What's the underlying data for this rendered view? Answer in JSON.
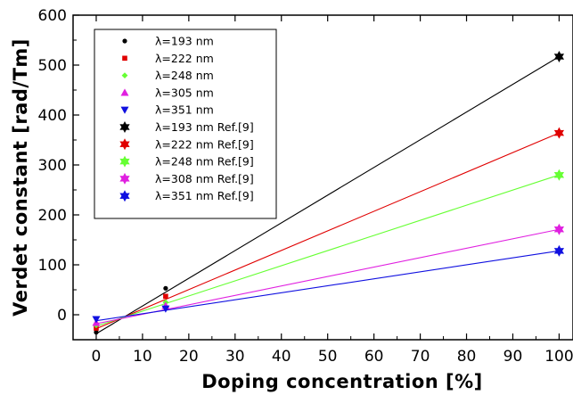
{
  "chart_data": {
    "type": "scatter",
    "title": "",
    "xlabel": "Doping concentration [%]",
    "ylabel": "Verdet constant [rad/Tm]",
    "xlim": [
      -5,
      103
    ],
    "ylim": [
      -50,
      600
    ],
    "xticks": [
      0,
      10,
      20,
      30,
      40,
      50,
      60,
      70,
      80,
      90,
      100
    ],
    "yticks": [
      0,
      100,
      200,
      300,
      400,
      500,
      600
    ],
    "grid": false,
    "legend_position": "top-left",
    "series": [
      {
        "name": "λ=193 nm",
        "marker": "circle",
        "color": "#000000",
        "x": [
          0,
          15
        ],
        "y": [
          -35,
          53
        ]
      },
      {
        "name": "λ=222 nm",
        "marker": "square",
        "color": "#e00000",
        "x": [
          0,
          15
        ],
        "y": [
          -27,
          37
        ]
      },
      {
        "name": "λ=248 nm",
        "marker": "diamond",
        "color": "#66ff33",
        "x": [
          0,
          15
        ],
        "y": [
          -21,
          25
        ]
      },
      {
        "name": "λ=305 nm",
        "marker": "triangle-up",
        "color": "#e020e0",
        "x": [
          0,
          15
        ],
        "y": [
          -16,
          18
        ]
      },
      {
        "name": "λ=351 nm",
        "marker": "triangle-down",
        "color": "#1010e0",
        "x": [
          0,
          15
        ],
        "y": [
          -9,
          12
        ]
      },
      {
        "name": "λ=193 nm Ref.[9]",
        "marker": "star",
        "color": "#000000",
        "x": [
          100
        ],
        "y": [
          517
        ]
      },
      {
        "name": "λ=222 nm Ref.[9]",
        "marker": "star",
        "color": "#e00000",
        "x": [
          100
        ],
        "y": [
          364
        ]
      },
      {
        "name": "λ=248 nm Ref.[9]",
        "marker": "star",
        "color": "#66ff33",
        "x": [
          100
        ],
        "y": [
          280
        ]
      },
      {
        "name": "λ=308 nm Ref.[9]",
        "marker": "star",
        "color": "#e020e0",
        "x": [
          100
        ],
        "y": [
          171
        ]
      },
      {
        "name": "λ=351 nm Ref.[9]",
        "marker": "star",
        "color": "#1010e0",
        "x": [
          100
        ],
        "y": [
          128
        ]
      }
    ],
    "fit_lines": [
      {
        "color": "#000000",
        "x": [
          0,
          100
        ],
        "y": [
          -38,
          517
        ]
      },
      {
        "color": "#e00000",
        "x": [
          0,
          100
        ],
        "y": [
          -28,
          364
        ]
      },
      {
        "color": "#66ff33",
        "x": [
          0,
          100
        ],
        "y": [
          -23,
          280
        ]
      },
      {
        "color": "#e020e0",
        "x": [
          0,
          100
        ],
        "y": [
          -18,
          171
        ]
      },
      {
        "color": "#1010e0",
        "x": [
          0,
          100
        ],
        "y": [
          -12,
          128
        ]
      }
    ]
  }
}
